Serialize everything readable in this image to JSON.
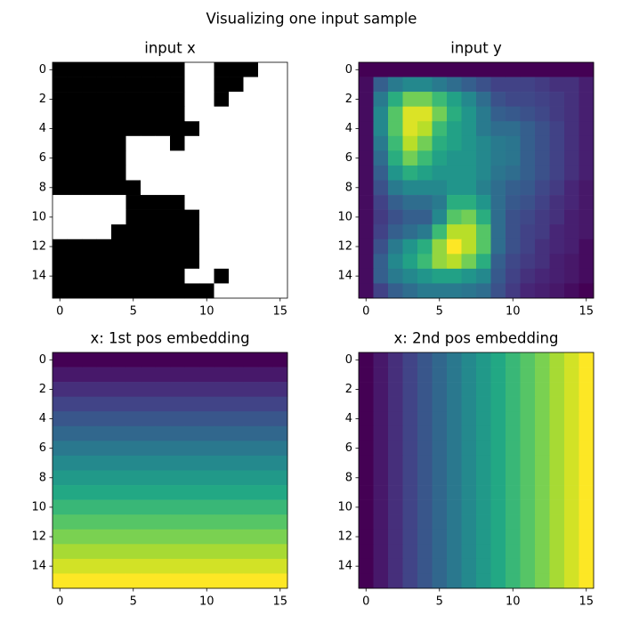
{
  "title": "Visualizing one input sample",
  "chart_data": [
    {
      "type": "heatmap",
      "title": "input x",
      "colormap": "gray",
      "xlim": [
        -0.5,
        15.5
      ],
      "ylim": [
        15.5,
        -0.5
      ],
      "xticks": [
        0,
        5,
        10,
        15
      ],
      "yticks": [
        0,
        2,
        4,
        6,
        8,
        10,
        12,
        14
      ],
      "values": [
        [
          0,
          0,
          0,
          0,
          0,
          0,
          0,
          0,
          0,
          1,
          1,
          0,
          0,
          0,
          1,
          1
        ],
        [
          0,
          0,
          0,
          0,
          0,
          0,
          0,
          0,
          0,
          1,
          1,
          0,
          0,
          1,
          1,
          1
        ],
        [
          0,
          0,
          0,
          0,
          0,
          0,
          0,
          0,
          0,
          1,
          1,
          0,
          1,
          1,
          1,
          1
        ],
        [
          0,
          0,
          0,
          0,
          0,
          0,
          0,
          0,
          0,
          1,
          1,
          1,
          1,
          1,
          1,
          1
        ],
        [
          0,
          0,
          0,
          0,
          0,
          0,
          0,
          0,
          0,
          0,
          1,
          1,
          1,
          1,
          1,
          1
        ],
        [
          0,
          0,
          0,
          0,
          0,
          1,
          1,
          1,
          0,
          1,
          1,
          1,
          1,
          1,
          1,
          1
        ],
        [
          0,
          0,
          0,
          0,
          0,
          1,
          1,
          1,
          1,
          1,
          1,
          1,
          1,
          1,
          1,
          1
        ],
        [
          0,
          0,
          0,
          0,
          0,
          1,
          1,
          1,
          1,
          1,
          1,
          1,
          1,
          1,
          1,
          1
        ],
        [
          0,
          0,
          0,
          0,
          0,
          0,
          1,
          1,
          1,
          1,
          1,
          1,
          1,
          1,
          1,
          1
        ],
        [
          1,
          1,
          1,
          1,
          1,
          0,
          0,
          0,
          0,
          1,
          1,
          1,
          1,
          1,
          1,
          1
        ],
        [
          1,
          1,
          1,
          1,
          1,
          0,
          0,
          0,
          0,
          0,
          1,
          1,
          1,
          1,
          1,
          1
        ],
        [
          1,
          1,
          1,
          1,
          0,
          0,
          0,
          0,
          0,
          0,
          1,
          1,
          1,
          1,
          1,
          1
        ],
        [
          0,
          0,
          0,
          0,
          0,
          0,
          0,
          0,
          0,
          0,
          1,
          1,
          1,
          1,
          1,
          1
        ],
        [
          0,
          0,
          0,
          0,
          0,
          0,
          0,
          0,
          0,
          0,
          1,
          1,
          1,
          1,
          1,
          1
        ],
        [
          0,
          0,
          0,
          0,
          0,
          0,
          0,
          0,
          0,
          1,
          1,
          0,
          1,
          1,
          1,
          1
        ],
        [
          0,
          0,
          0,
          0,
          0,
          0,
          0,
          0,
          0,
          0,
          0,
          1,
          1,
          1,
          1,
          1
        ]
      ]
    },
    {
      "type": "heatmap",
      "title": "input y",
      "colormap": "viridis",
      "xlim": [
        -0.5,
        15.5
      ],
      "ylim": [
        15.5,
        -0.5
      ],
      "xticks": [
        0,
        5,
        10,
        15
      ],
      "yticks": [
        0,
        2,
        4,
        6,
        8,
        10,
        12,
        14
      ],
      "values": [
        [
          0.02,
          0.02,
          0.02,
          0.02,
          0.02,
          0.02,
          0.02,
          0.02,
          0.02,
          0.02,
          0.02,
          0.02,
          0.02,
          0.02,
          0.02,
          0.02
        ],
        [
          0.05,
          0.3,
          0.4,
          0.45,
          0.45,
          0.4,
          0.35,
          0.3,
          0.25,
          0.2,
          0.2,
          0.2,
          0.18,
          0.15,
          0.15,
          0.1
        ],
        [
          0.05,
          0.4,
          0.6,
          0.75,
          0.75,
          0.65,
          0.55,
          0.45,
          0.35,
          0.25,
          0.22,
          0.22,
          0.2,
          0.18,
          0.15,
          0.1
        ],
        [
          0.05,
          0.45,
          0.7,
          0.9,
          0.9,
          0.75,
          0.6,
          0.5,
          0.4,
          0.3,
          0.28,
          0.25,
          0.22,
          0.18,
          0.15,
          0.1
        ],
        [
          0.05,
          0.45,
          0.7,
          0.9,
          0.85,
          0.65,
          0.55,
          0.5,
          0.4,
          0.35,
          0.35,
          0.3,
          0.25,
          0.2,
          0.15,
          0.1
        ],
        [
          0.05,
          0.4,
          0.65,
          0.85,
          0.75,
          0.6,
          0.55,
          0.5,
          0.45,
          0.4,
          0.38,
          0.3,
          0.25,
          0.2,
          0.15,
          0.1
        ],
        [
          0.05,
          0.35,
          0.6,
          0.75,
          0.65,
          0.55,
          0.5,
          0.5,
          0.45,
          0.4,
          0.38,
          0.3,
          0.25,
          0.2,
          0.15,
          0.1
        ],
        [
          0.05,
          0.3,
          0.5,
          0.6,
          0.55,
          0.5,
          0.5,
          0.5,
          0.45,
          0.38,
          0.35,
          0.3,
          0.25,
          0.2,
          0.15,
          0.1
        ],
        [
          0.05,
          0.25,
          0.4,
          0.45,
          0.45,
          0.45,
          0.5,
          0.5,
          0.42,
          0.35,
          0.3,
          0.28,
          0.22,
          0.18,
          0.12,
          0.08
        ],
        [
          0.05,
          0.2,
          0.3,
          0.35,
          0.35,
          0.4,
          0.6,
          0.6,
          0.5,
          0.35,
          0.28,
          0.25,
          0.2,
          0.15,
          0.12,
          0.08
        ],
        [
          0.05,
          0.18,
          0.25,
          0.3,
          0.3,
          0.45,
          0.7,
          0.75,
          0.6,
          0.35,
          0.25,
          0.22,
          0.18,
          0.15,
          0.1,
          0.08
        ],
        [
          0.05,
          0.2,
          0.3,
          0.35,
          0.4,
          0.65,
          0.85,
          0.85,
          0.7,
          0.35,
          0.25,
          0.2,
          0.18,
          0.12,
          0.1,
          0.08
        ],
        [
          0.05,
          0.25,
          0.4,
          0.5,
          0.6,
          0.8,
          0.95,
          0.85,
          0.7,
          0.35,
          0.25,
          0.2,
          0.15,
          0.12,
          0.1,
          0.05
        ],
        [
          0.05,
          0.3,
          0.45,
          0.55,
          0.65,
          0.8,
          0.85,
          0.75,
          0.6,
          0.3,
          0.22,
          0.18,
          0.15,
          0.1,
          0.08,
          0.05
        ],
        [
          0.05,
          0.3,
          0.4,
          0.45,
          0.5,
          0.55,
          0.55,
          0.5,
          0.45,
          0.28,
          0.2,
          0.15,
          0.12,
          0.1,
          0.08,
          0.05
        ],
        [
          0.05,
          0.2,
          0.3,
          0.35,
          0.4,
          0.4,
          0.4,
          0.38,
          0.35,
          0.25,
          0.18,
          0.12,
          0.1,
          0.08,
          0.05,
          0.02
        ]
      ]
    },
    {
      "type": "heatmap",
      "title": "x: 1st pos embedding",
      "colormap": "viridis",
      "xlim": [
        -0.5,
        15.5
      ],
      "ylim": [
        15.5,
        -0.5
      ],
      "xticks": [
        0,
        5,
        10,
        15
      ],
      "yticks": [
        0,
        2,
        4,
        6,
        8,
        10,
        12,
        14
      ],
      "values": [
        [
          0,
          0,
          0,
          0,
          0,
          0,
          0,
          0,
          0,
          0,
          0,
          0,
          0,
          0,
          0,
          0
        ],
        [
          1,
          1,
          1,
          1,
          1,
          1,
          1,
          1,
          1,
          1,
          1,
          1,
          1,
          1,
          1,
          1
        ],
        [
          2,
          2,
          2,
          2,
          2,
          2,
          2,
          2,
          2,
          2,
          2,
          2,
          2,
          2,
          2,
          2
        ],
        [
          3,
          3,
          3,
          3,
          3,
          3,
          3,
          3,
          3,
          3,
          3,
          3,
          3,
          3,
          3,
          3
        ],
        [
          4,
          4,
          4,
          4,
          4,
          4,
          4,
          4,
          4,
          4,
          4,
          4,
          4,
          4,
          4,
          4
        ],
        [
          5,
          5,
          5,
          5,
          5,
          5,
          5,
          5,
          5,
          5,
          5,
          5,
          5,
          5,
          5,
          5
        ],
        [
          6,
          6,
          6,
          6,
          6,
          6,
          6,
          6,
          6,
          6,
          6,
          6,
          6,
          6,
          6,
          6
        ],
        [
          7,
          7,
          7,
          7,
          7,
          7,
          7,
          7,
          7,
          7,
          7,
          7,
          7,
          7,
          7,
          7
        ],
        [
          8,
          8,
          8,
          8,
          8,
          8,
          8,
          8,
          8,
          8,
          8,
          8,
          8,
          8,
          8,
          8
        ],
        [
          9,
          9,
          9,
          9,
          9,
          9,
          9,
          9,
          9,
          9,
          9,
          9,
          9,
          9,
          9,
          9
        ],
        [
          10,
          10,
          10,
          10,
          10,
          10,
          10,
          10,
          10,
          10,
          10,
          10,
          10,
          10,
          10,
          10
        ],
        [
          11,
          11,
          11,
          11,
          11,
          11,
          11,
          11,
          11,
          11,
          11,
          11,
          11,
          11,
          11,
          11
        ],
        [
          12,
          12,
          12,
          12,
          12,
          12,
          12,
          12,
          12,
          12,
          12,
          12,
          12,
          12,
          12,
          12
        ],
        [
          13,
          13,
          13,
          13,
          13,
          13,
          13,
          13,
          13,
          13,
          13,
          13,
          13,
          13,
          13,
          13
        ],
        [
          14,
          14,
          14,
          14,
          14,
          14,
          14,
          14,
          14,
          14,
          14,
          14,
          14,
          14,
          14,
          14
        ],
        [
          15,
          15,
          15,
          15,
          15,
          15,
          15,
          15,
          15,
          15,
          15,
          15,
          15,
          15,
          15,
          15
        ]
      ]
    },
    {
      "type": "heatmap",
      "title": "x: 2nd pos embedding",
      "colormap": "viridis",
      "xlim": [
        -0.5,
        15.5
      ],
      "ylim": [
        15.5,
        -0.5
      ],
      "xticks": [
        0,
        5,
        10,
        15
      ],
      "yticks": [
        0,
        2,
        4,
        6,
        8,
        10,
        12,
        14
      ],
      "values": [
        [
          0,
          1,
          2,
          3,
          4,
          5,
          6,
          7,
          8,
          9,
          10,
          11,
          12,
          13,
          14,
          15
        ],
        [
          0,
          1,
          2,
          3,
          4,
          5,
          6,
          7,
          8,
          9,
          10,
          11,
          12,
          13,
          14,
          15
        ],
        [
          0,
          1,
          2,
          3,
          4,
          5,
          6,
          7,
          8,
          9,
          10,
          11,
          12,
          13,
          14,
          15
        ],
        [
          0,
          1,
          2,
          3,
          4,
          5,
          6,
          7,
          8,
          9,
          10,
          11,
          12,
          13,
          14,
          15
        ],
        [
          0,
          1,
          2,
          3,
          4,
          5,
          6,
          7,
          8,
          9,
          10,
          11,
          12,
          13,
          14,
          15
        ],
        [
          0,
          1,
          2,
          3,
          4,
          5,
          6,
          7,
          8,
          9,
          10,
          11,
          12,
          13,
          14,
          15
        ],
        [
          0,
          1,
          2,
          3,
          4,
          5,
          6,
          7,
          8,
          9,
          10,
          11,
          12,
          13,
          14,
          15
        ],
        [
          0,
          1,
          2,
          3,
          4,
          5,
          6,
          7,
          8,
          9,
          10,
          11,
          12,
          13,
          14,
          15
        ],
        [
          0,
          1,
          2,
          3,
          4,
          5,
          6,
          7,
          8,
          9,
          10,
          11,
          12,
          13,
          14,
          15
        ],
        [
          0,
          1,
          2,
          3,
          4,
          5,
          6,
          7,
          8,
          9,
          10,
          11,
          12,
          13,
          14,
          15
        ],
        [
          0,
          1,
          2,
          3,
          4,
          5,
          6,
          7,
          8,
          9,
          10,
          11,
          12,
          13,
          14,
          15
        ],
        [
          0,
          1,
          2,
          3,
          4,
          5,
          6,
          7,
          8,
          9,
          10,
          11,
          12,
          13,
          14,
          15
        ],
        [
          0,
          1,
          2,
          3,
          4,
          5,
          6,
          7,
          8,
          9,
          10,
          11,
          12,
          13,
          14,
          15
        ],
        [
          0,
          1,
          2,
          3,
          4,
          5,
          6,
          7,
          8,
          9,
          10,
          11,
          12,
          13,
          14,
          15
        ],
        [
          0,
          1,
          2,
          3,
          4,
          5,
          6,
          7,
          8,
          9,
          10,
          11,
          12,
          13,
          14,
          15
        ],
        [
          0,
          1,
          2,
          3,
          4,
          5,
          6,
          7,
          8,
          9,
          10,
          11,
          12,
          13,
          14,
          15
        ]
      ]
    }
  ]
}
